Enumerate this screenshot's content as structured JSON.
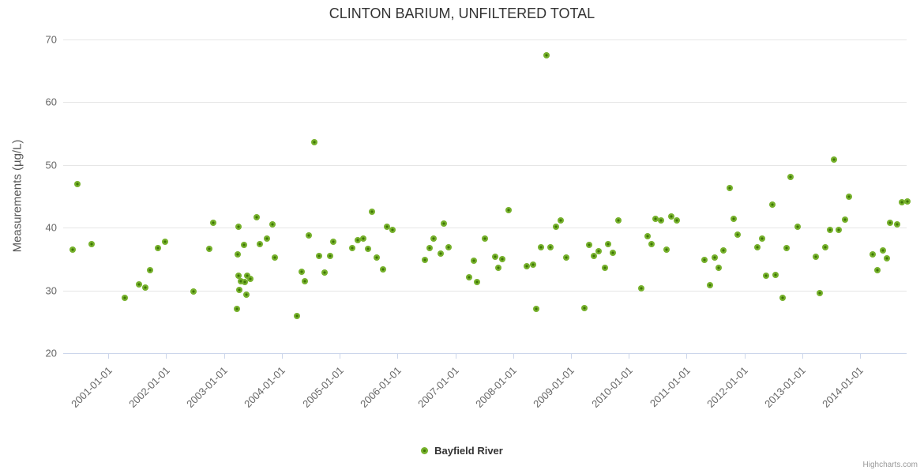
{
  "chart": {
    "title": "CLINTON BARIUM, UNFILTERED TOTAL",
    "credits": "Highcharts.com"
  },
  "legend": {
    "items": [
      {
        "label": "Bayfield River"
      }
    ]
  },
  "chart_data": {
    "type": "scatter",
    "title": "CLINTON BARIUM, UNFILTERED TOTAL",
    "xlabel": "",
    "ylabel": "Measurements (µg/L)",
    "ylim": [
      20,
      70
    ],
    "yticks": [
      20,
      30,
      40,
      50,
      60,
      70
    ],
    "xticks": [
      "2001-01-01",
      "2002-01-01",
      "2003-01-01",
      "2004-01-01",
      "2005-01-01",
      "2006-01-01",
      "2007-01-01",
      "2008-01-01",
      "2009-01-01",
      "2010-01-01",
      "2011-01-01",
      "2012-01-01",
      "2013-01-01",
      "2014-01-01"
    ],
    "x_range_years": [
      2000.22,
      2014.81
    ],
    "grid": "horizontal-only",
    "legend_position": "bottom-center",
    "marker_color": "#76b12c",
    "marker_center_color": "#3e7506",
    "series": [
      {
        "name": "Bayfield River",
        "points": [
          [
            "2000-05-17",
            36.5
          ],
          [
            "2000-06-20",
            46.9
          ],
          [
            "2000-09-15",
            37.4
          ],
          [
            "2001-04-15",
            28.8
          ],
          [
            "2001-07-12",
            30.9
          ],
          [
            "2001-08-22",
            30.4
          ],
          [
            "2001-09-21",
            33.2
          ],
          [
            "2001-11-08",
            36.8
          ],
          [
            "2001-12-25",
            37.8
          ],
          [
            "2002-06-21",
            29.8
          ],
          [
            "2002-10-01",
            36.6
          ],
          [
            "2002-10-24",
            40.8
          ],
          [
            "2003-03-21",
            27.0
          ],
          [
            "2003-03-25",
            35.7
          ],
          [
            "2003-04-01",
            40.2
          ],
          [
            "2003-04-03",
            32.3
          ],
          [
            "2003-04-05",
            30.1
          ],
          [
            "2003-04-18",
            31.5
          ],
          [
            "2003-05-05",
            37.3
          ],
          [
            "2003-05-10",
            31.3
          ],
          [
            "2003-05-18",
            29.3
          ],
          [
            "2003-05-27",
            32.4
          ],
          [
            "2003-06-16",
            31.9
          ],
          [
            "2003-07-24",
            41.6
          ],
          [
            "2003-08-16",
            37.4
          ],
          [
            "2003-09-27",
            38.2
          ],
          [
            "2003-11-04",
            40.5
          ],
          [
            "2003-11-18",
            35.2
          ],
          [
            "2004-04-04",
            25.9
          ],
          [
            "2004-05-04",
            33.0
          ],
          [
            "2004-05-26",
            31.5
          ],
          [
            "2004-06-20",
            38.8
          ],
          [
            "2004-07-25",
            53.6
          ],
          [
            "2004-08-25",
            35.5
          ],
          [
            "2004-09-29",
            32.8
          ],
          [
            "2004-10-30",
            35.5
          ],
          [
            "2004-11-22",
            37.8
          ],
          [
            "2005-03-21",
            36.7
          ],
          [
            "2005-04-24",
            38.0
          ],
          [
            "2005-05-27",
            38.3
          ],
          [
            "2005-06-28",
            36.6
          ],
          [
            "2005-07-23",
            42.5
          ],
          [
            "2005-08-24",
            35.3
          ],
          [
            "2005-09-29",
            33.4
          ],
          [
            "2005-10-26",
            40.2
          ],
          [
            "2005-11-30",
            39.7
          ],
          [
            "2006-06-24",
            34.8
          ],
          [
            "2006-07-19",
            36.7
          ],
          [
            "2006-08-18",
            38.3
          ],
          [
            "2006-09-29",
            35.9
          ],
          [
            "2006-10-22",
            40.7
          ],
          [
            "2006-11-21",
            36.9
          ],
          [
            "2007-03-27",
            32.1
          ],
          [
            "2007-04-25",
            34.7
          ],
          [
            "2007-05-18",
            31.3
          ],
          [
            "2007-07-03",
            38.2
          ],
          [
            "2007-09-09",
            35.4
          ],
          [
            "2007-09-30",
            33.6
          ],
          [
            "2007-10-26",
            35.0
          ],
          [
            "2007-12-05",
            42.8
          ],
          [
            "2008-03-25",
            33.8
          ],
          [
            "2008-05-04",
            34.1
          ],
          [
            "2008-05-26",
            27.1
          ],
          [
            "2008-06-23",
            36.9
          ],
          [
            "2008-07-29",
            67.5
          ],
          [
            "2008-08-24",
            36.9
          ],
          [
            "2008-09-30",
            40.1
          ],
          [
            "2008-10-30",
            41.2
          ],
          [
            "2008-12-02",
            35.2
          ],
          [
            "2009-03-23",
            27.2
          ],
          [
            "2009-04-27",
            37.3
          ],
          [
            "2009-05-25",
            35.5
          ],
          [
            "2009-06-22",
            36.2
          ],
          [
            "2009-07-31",
            33.6
          ],
          [
            "2009-08-25",
            37.4
          ],
          [
            "2009-09-24",
            36.0
          ],
          [
            "2009-10-27",
            41.2
          ],
          [
            "2010-03-20",
            30.3
          ],
          [
            "2010-04-27",
            38.7
          ],
          [
            "2010-05-22",
            37.4
          ],
          [
            "2010-06-20",
            41.4
          ],
          [
            "2010-07-23",
            41.2
          ],
          [
            "2010-08-25",
            36.5
          ],
          [
            "2010-09-24",
            41.8
          ],
          [
            "2010-10-31",
            41.2
          ],
          [
            "2011-04-23",
            34.8
          ],
          [
            "2011-05-26",
            30.8
          ],
          [
            "2011-06-28",
            35.3
          ],
          [
            "2011-07-20",
            33.6
          ],
          [
            "2011-08-22",
            36.4
          ],
          [
            "2011-09-28",
            46.3
          ],
          [
            "2011-10-23",
            41.4
          ],
          [
            "2011-11-21",
            38.9
          ],
          [
            "2012-03-21",
            36.9
          ],
          [
            "2012-04-20",
            38.2
          ],
          [
            "2012-05-18",
            32.3
          ],
          [
            "2012-06-24",
            43.7
          ],
          [
            "2012-07-14",
            32.5
          ],
          [
            "2012-09-01",
            28.8
          ],
          [
            "2012-09-26",
            36.8
          ],
          [
            "2012-10-19",
            48.1
          ],
          [
            "2012-12-01",
            40.1
          ],
          [
            "2013-03-25",
            35.4
          ],
          [
            "2013-04-21",
            29.6
          ],
          [
            "2013-05-23",
            36.9
          ],
          [
            "2013-06-25",
            39.6
          ],
          [
            "2013-07-18",
            50.9
          ],
          [
            "2013-08-21",
            39.6
          ],
          [
            "2013-09-27",
            41.3
          ],
          [
            "2013-10-22",
            45.0
          ],
          [
            "2014-03-21",
            35.7
          ],
          [
            "2014-04-20",
            33.2
          ],
          [
            "2014-05-26",
            36.4
          ],
          [
            "2014-06-17",
            35.1
          ],
          [
            "2014-07-09",
            40.8
          ],
          [
            "2014-08-25",
            40.5
          ],
          [
            "2014-09-20",
            44.0
          ],
          [
            "2014-10-29",
            44.2
          ]
        ]
      }
    ]
  }
}
